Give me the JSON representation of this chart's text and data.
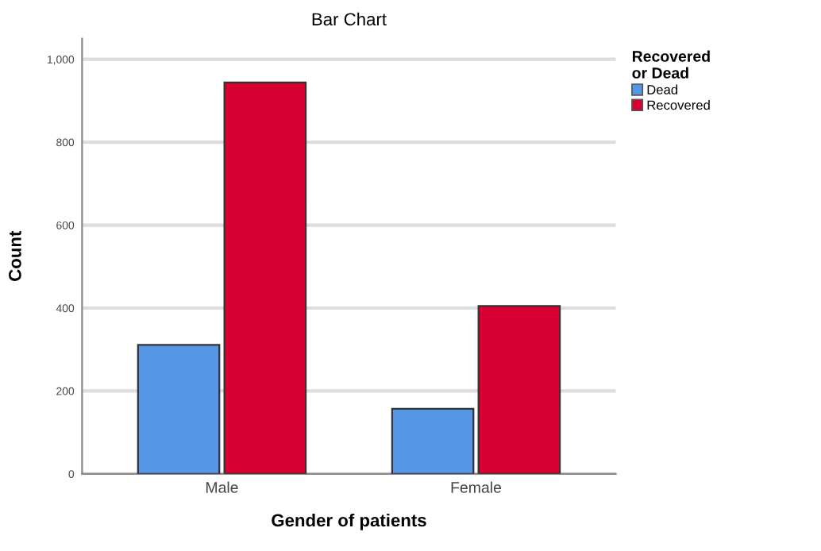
{
  "chart_data": {
    "type": "bar",
    "title": "Bar Chart",
    "xlabel": "Gender of patients",
    "ylabel": "Count",
    "legend_title": "Recovered\nor Dead",
    "categories": [
      "Male",
      "Female"
    ],
    "series": [
      {
        "name": "Dead",
        "color": "#5596e6",
        "values": [
          311,
          157
        ]
      },
      {
        "name": "Recovered",
        "color": "#d70030",
        "values": [
          944,
          405
        ]
      }
    ],
    "ylim": [
      0,
      1050
    ],
    "yticks": [
      0,
      200,
      400,
      600,
      800,
      {
        "value": 1000,
        "label": "1,000"
      }
    ],
    "grid": "y",
    "legend": "top right"
  }
}
